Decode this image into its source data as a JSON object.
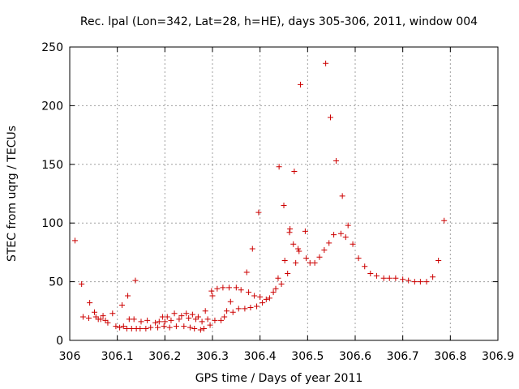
{
  "chart_data": {
    "type": "scatter",
    "title": "Rec. lpal (Lon=342, Lat=28, h=HE), days 305-306, 2011, window 004",
    "xlabel": "GPS time / Days of year 2011",
    "ylabel": "STEC from uqrg / TECUs",
    "xlim": [
      306,
      306.9
    ],
    "ylim": [
      0,
      250
    ],
    "xticks": [
      "306",
      "306.1",
      "306.2",
      "306.3",
      "306.4",
      "306.5",
      "306.6",
      "306.7",
      "306.8",
      "306.9"
    ],
    "yticks": [
      "0",
      "50",
      "100",
      "150",
      "200",
      "250"
    ],
    "grid": true,
    "marker": "plus",
    "marker_color": "#cc0000",
    "series": [
      {
        "name": "STEC",
        "points": [
          [
            306.011,
            85
          ],
          [
            306.025,
            48
          ],
          [
            306.028,
            20
          ],
          [
            306.04,
            19
          ],
          [
            306.042,
            32
          ],
          [
            306.052,
            24
          ],
          [
            306.055,
            20
          ],
          [
            306.06,
            18
          ],
          [
            306.065,
            18
          ],
          [
            306.07,
            21
          ],
          [
            306.075,
            17
          ],
          [
            306.08,
            15
          ],
          [
            306.09,
            23
          ],
          [
            306.097,
            12
          ],
          [
            306.105,
            11
          ],
          [
            306.11,
            30
          ],
          [
            306.113,
            12
          ],
          [
            306.12,
            10
          ],
          [
            306.122,
            38
          ],
          [
            306.125,
            18
          ],
          [
            306.13,
            10
          ],
          [
            306.135,
            18
          ],
          [
            306.138,
            51
          ],
          [
            306.14,
            10
          ],
          [
            306.148,
            10
          ],
          [
            306.15,
            16
          ],
          [
            306.16,
            10
          ],
          [
            306.163,
            17
          ],
          [
            306.17,
            11
          ],
          [
            306.18,
            15
          ],
          [
            306.185,
            11
          ],
          [
            306.188,
            16
          ],
          [
            306.195,
            20
          ],
          [
            306.198,
            12
          ],
          [
            306.2,
            16
          ],
          [
            306.205,
            20
          ],
          [
            306.21,
            11
          ],
          [
            306.213,
            17
          ],
          [
            306.22,
            23
          ],
          [
            306.224,
            12
          ],
          [
            306.23,
            18
          ],
          [
            306.235,
            21
          ],
          [
            306.24,
            12
          ],
          [
            306.245,
            23
          ],
          [
            306.25,
            19
          ],
          [
            306.253,
            11
          ],
          [
            306.258,
            22
          ],
          [
            306.262,
            10
          ],
          [
            306.265,
            18
          ],
          [
            306.27,
            20
          ],
          [
            306.275,
            9
          ],
          [
            306.278,
            16
          ],
          [
            306.282,
            10
          ],
          [
            306.285,
            25
          ],
          [
            306.29,
            18
          ],
          [
            306.295,
            13
          ],
          [
            306.298,
            42
          ],
          [
            306.3,
            38
          ],
          [
            306.305,
            17
          ],
          [
            306.31,
            44
          ],
          [
            306.318,
            17
          ],
          [
            306.322,
            45
          ],
          [
            306.325,
            20
          ],
          [
            306.33,
            25
          ],
          [
            306.335,
            45
          ],
          [
            306.338,
            33
          ],
          [
            306.343,
            24
          ],
          [
            306.35,
            45
          ],
          [
            306.355,
            27
          ],
          [
            306.36,
            43
          ],
          [
            306.368,
            27
          ],
          [
            306.372,
            58
          ],
          [
            306.376,
            41
          ],
          [
            306.38,
            28
          ],
          [
            306.384,
            78
          ],
          [
            306.388,
            38
          ],
          [
            306.393,
            29
          ],
          [
            306.397,
            109
          ],
          [
            306.4,
            37
          ],
          [
            306.405,
            32
          ],
          [
            306.413,
            35
          ],
          [
            306.42,
            36
          ],
          [
            306.428,
            41
          ],
          [
            306.433,
            44
          ],
          [
            306.438,
            53
          ],
          [
            306.44,
            148
          ],
          [
            306.445,
            48
          ],
          [
            306.45,
            115
          ],
          [
            306.452,
            68
          ],
          [
            306.458,
            57
          ],
          [
            306.462,
            92
          ],
          [
            306.463,
            95
          ],
          [
            306.47,
            82
          ],
          [
            306.472,
            144
          ],
          [
            306.475,
            66
          ],
          [
            306.48,
            78
          ],
          [
            306.482,
            76
          ],
          [
            306.485,
            218
          ],
          [
            306.495,
            93
          ],
          [
            306.497,
            70
          ],
          [
            306.505,
            66
          ],
          [
            306.515,
            66
          ],
          [
            306.525,
            71
          ],
          [
            306.535,
            77
          ],
          [
            306.538,
            236
          ],
          [
            306.545,
            83
          ],
          [
            306.548,
            190
          ],
          [
            306.555,
            90
          ],
          [
            306.56,
            153
          ],
          [
            306.57,
            91
          ],
          [
            306.573,
            123
          ],
          [
            306.58,
            88
          ],
          [
            306.585,
            98
          ],
          [
            306.595,
            82
          ],
          [
            306.607,
            70
          ],
          [
            306.62,
            63
          ],
          [
            306.632,
            57
          ],
          [
            306.645,
            55
          ],
          [
            306.66,
            53
          ],
          [
            306.672,
            53
          ],
          [
            306.685,
            53
          ],
          [
            306.7,
            52
          ],
          [
            306.712,
            51
          ],
          [
            306.725,
            50
          ],
          [
            306.737,
            50
          ],
          [
            306.75,
            50
          ],
          [
            306.763,
            54
          ],
          [
            306.775,
            68
          ],
          [
            306.787,
            102
          ]
        ]
      }
    ]
  }
}
